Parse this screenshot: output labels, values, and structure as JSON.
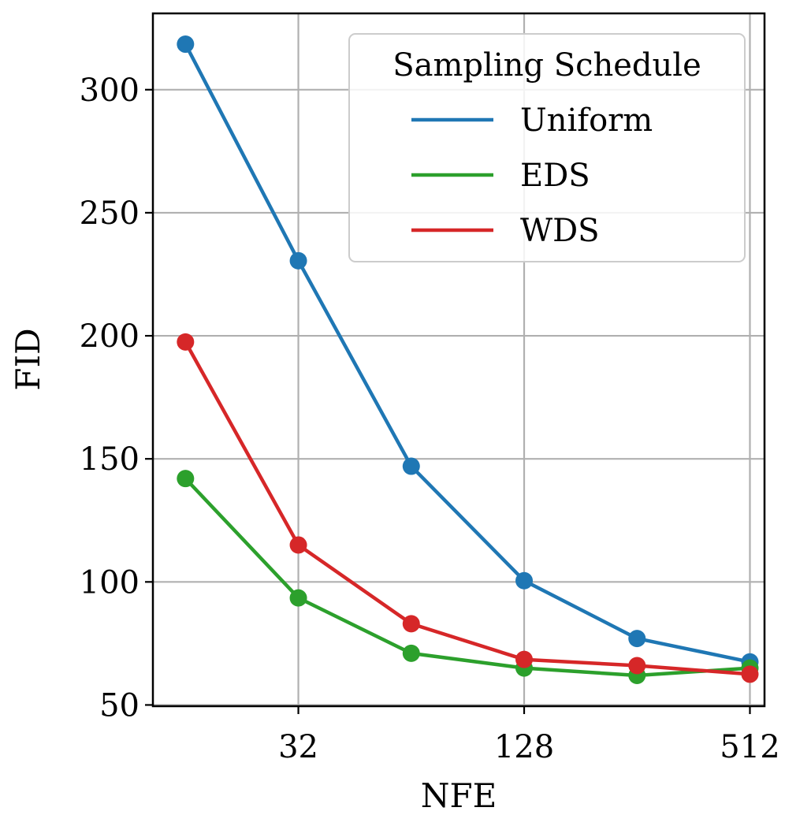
{
  "chart_data": {
    "type": "line",
    "title": "",
    "xlabel": "NFE",
    "ylabel": "FID",
    "x_scale": "log2",
    "x": [
      16,
      32,
      64,
      128,
      256,
      512
    ],
    "x_ticks": [
      32,
      128,
      512
    ],
    "x_tick_labels": [
      "32",
      "128",
      "512"
    ],
    "xlim": [
      13.1,
      560
    ],
    "y_ticks": [
      50,
      100,
      150,
      200,
      250,
      300
    ],
    "y_tick_labels": [
      "50",
      "100",
      "150",
      "200",
      "250",
      "300"
    ],
    "ylim": [
      49.5,
      331
    ],
    "grid": true,
    "legend": {
      "title": "Sampling Schedule",
      "placement": "top-right"
    },
    "series": [
      {
        "name": "Uniform",
        "color": "#1f77b4",
        "values": [
          318.5,
          230.5,
          147,
          100.5,
          77,
          67.5
        ]
      },
      {
        "name": "EDS",
        "color": "#2ca02c",
        "values": [
          142,
          93.5,
          71,
          65,
          62,
          65
        ]
      },
      {
        "name": "WDS",
        "color": "#d62728",
        "values": [
          197.5,
          115,
          83,
          68.5,
          66,
          62.5
        ]
      }
    ]
  }
}
